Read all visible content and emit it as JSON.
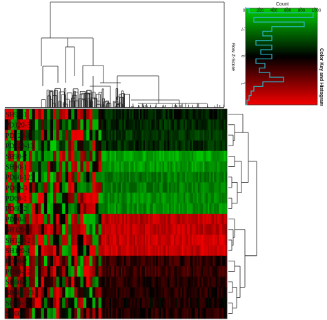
{
  "chart_data": {
    "type": "heatmap",
    "row_labels": [
      "SH90-1",
      "PD120-3",
      "PD120-1",
      "PD120-13",
      "SH90-2",
      "SH90-1",
      "PD60-123",
      "PD60-3",
      "PD60-1",
      "PD60-2",
      "PD90-1",
      "SH120-3",
      "SH120-2",
      "SH120-1",
      "PD90-2",
      "PD90-12",
      "SH60-2",
      "SH60-123",
      "SH60-3",
      "SH60-1"
    ],
    "row_zscore_level": [
      -0.3,
      -0.4,
      -0.5,
      -0.4,
      -1.6,
      -1.5,
      -1.2,
      -1.2,
      -1.4,
      -1.4,
      1.6,
      1.6,
      1.7,
      1.7,
      0.4,
      0.5,
      0.3,
      0.3,
      0.2,
      0.3
    ],
    "color_low": "#00cc00",
    "color_mid": "#000000",
    "color_high": "#ee0000",
    "color_key": {
      "title": "Color Key and Histogram",
      "xlabel": "Row Z-Score",
      "ylabel": "Count",
      "x_ticks": [
        "-1",
        "0",
        "1"
      ],
      "count_ticks": [
        "0",
        "200",
        "400",
        "600",
        "800",
        "1000"
      ],
      "count_max": 1000,
      "histogram_fraction": [
        0.05,
        0.98,
        0.12,
        0.85,
        0.38,
        0.25,
        0.38,
        0.15,
        0.38,
        0.22,
        0.38,
        0.15,
        0.28,
        0.2,
        0.35,
        0.55,
        0.25,
        0.12,
        0.08,
        0.05,
        0.02
      ]
    }
  }
}
